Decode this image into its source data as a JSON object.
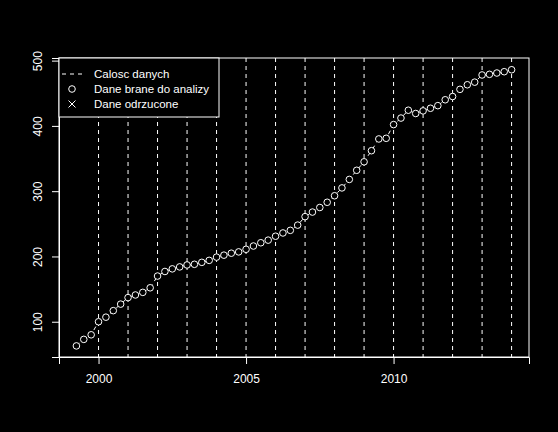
{
  "chart_data": {
    "type": "line",
    "x": [
      1999.25,
      1999.5,
      1999.75,
      2000.0,
      2000.25,
      2000.5,
      2000.75,
      2001.0,
      2001.25,
      2001.5,
      2001.75,
      2002.0,
      2002.25,
      2002.5,
      2002.75,
      2003.0,
      2003.25,
      2003.5,
      2003.75,
      2004.0,
      2004.25,
      2004.5,
      2004.75,
      2005.0,
      2005.25,
      2005.5,
      2005.75,
      2006.0,
      2006.25,
      2006.5,
      2006.75,
      2007.0,
      2007.25,
      2007.5,
      2007.75,
      2008.0,
      2008.25,
      2008.5,
      2008.75,
      2009.0,
      2009.25,
      2009.5,
      2009.75,
      2010.0,
      2010.25,
      2010.5,
      2010.75,
      2011.0,
      2011.25,
      2011.5,
      2011.75,
      2012.0,
      2012.25,
      2012.5,
      2012.75,
      2013.0,
      2013.25,
      2013.5,
      2013.75,
      2014.0
    ],
    "series": [
      {
        "name": "Calosc danych",
        "type": "line",
        "line_style": "dashed",
        "color": "#ffffff",
        "values": [
          63,
          73,
          80,
          100,
          107,
          117,
          127,
          137,
          141,
          145,
          152,
          170,
          177,
          181,
          184,
          187,
          188,
          191,
          194,
          199,
          202,
          205,
          207,
          211,
          216,
          221,
          225,
          231,
          236,
          240,
          248,
          261,
          268,
          275,
          283,
          293,
          305,
          318,
          332,
          345,
          362,
          380,
          381,
          402,
          412,
          424,
          419,
          423,
          427,
          431,
          440,
          445,
          456,
          463,
          467,
          478,
          479,
          481,
          483,
          486
        ]
      },
      {
        "name": "Dane brane do analizy",
        "type": "scatter",
        "marker": "circle",
        "color": "#ffffff",
        "values": [
          63,
          73,
          80,
          100,
          107,
          117,
          127,
          137,
          141,
          145,
          152,
          170,
          177,
          181,
          184,
          187,
          188,
          191,
          194,
          199,
          202,
          205,
          207,
          211,
          216,
          221,
          225,
          231,
          236,
          240,
          248,
          261,
          268,
          275,
          283,
          293,
          305,
          318,
          332,
          345,
          362,
          380,
          381,
          402,
          412,
          424,
          419,
          423,
          427,
          431,
          440,
          445,
          456,
          463,
          467,
          478,
          479,
          481,
          483,
          486
        ]
      },
      {
        "name": "Dane odrzucone",
        "type": "scatter",
        "marker": "x",
        "color": "#ffffff",
        "values": [
          null,
          null,
          null,
          null,
          null,
          null,
          null,
          null,
          null,
          null,
          null,
          null,
          null,
          null,
          null,
          null,
          null,
          null,
          null,
          null,
          null,
          null,
          null,
          null,
          null,
          null,
          null,
          null,
          null,
          null,
          null,
          null,
          null,
          null,
          null,
          null,
          null,
          null,
          null,
          null,
          null,
          null,
          null,
          null,
          null,
          null,
          null,
          null,
          null,
          null,
          null,
          null,
          null,
          null,
          null,
          null,
          null,
          null,
          null,
          null
        ]
      }
    ],
    "vlines": [
      2000,
      2001,
      2002,
      2003,
      2004,
      2005,
      2006,
      2007,
      2008,
      2009,
      2010,
      2011,
      2012,
      2013,
      2014
    ],
    "xlim": [
      1998.66,
      2014.59
    ],
    "xticks": [
      2000,
      2005,
      2010
    ],
    "ylim": [
      46,
      504
    ],
    "yticks": [
      100,
      200,
      300,
      400,
      500
    ],
    "legend": "top-left"
  }
}
